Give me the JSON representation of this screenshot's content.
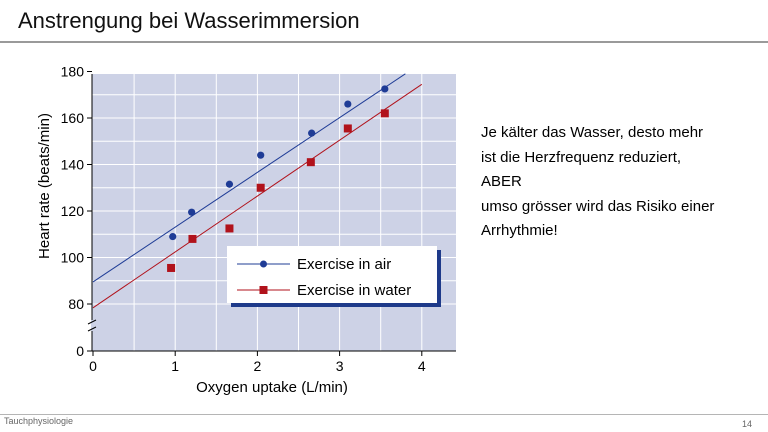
{
  "slide": {
    "title": "Anstrengung bei Wasserimmersion",
    "footer_left": "Tauchphysiologie",
    "page_number": "14"
  },
  "text_block": {
    "lines": [
      "Je kälter das Wasser, desto mehr",
      "ist die Herzfrequenz reduziert,",
      "ABER",
      "umso grösser wird das Risiko einer",
      "Arrhythmie!"
    ]
  },
  "colors": {
    "plot_background": "#cdd2e6",
    "grid": "#ffffff",
    "air": "#1f3c96",
    "water": "#b1121b",
    "legend_shadow": "#1e3a8a"
  },
  "chart_data": {
    "type": "scatter",
    "xlabel": "Oxygen uptake (L/min)",
    "ylabel": "Heart rate (beats/min)",
    "xlim": [
      0,
      4.4
    ],
    "ylim": [
      0,
      180
    ],
    "x_ticks": [
      0,
      1,
      2,
      3,
      4
    ],
    "y_ticks": [
      0,
      80,
      100,
      120,
      140,
      160,
      180
    ],
    "y_axis_break": [
      0,
      70
    ],
    "grid": true,
    "legend_position": "lower-right",
    "series": [
      {
        "name": "Exercise in air",
        "marker": "circle",
        "points": [
          [
            0.97,
            109
          ],
          [
            1.2,
            119.5
          ],
          [
            1.66,
            131.5
          ],
          [
            2.04,
            144
          ],
          [
            2.66,
            153.5
          ],
          [
            3.1,
            166
          ],
          [
            3.55,
            172.5
          ]
        ],
        "fit_line": [
          [
            0,
            89.5
          ],
          [
            3.8,
            179
          ]
        ]
      },
      {
        "name": "Exercise in water",
        "marker": "square",
        "points": [
          [
            0.95,
            95.5
          ],
          [
            1.21,
            108
          ],
          [
            1.66,
            112.5
          ],
          [
            2.04,
            130
          ],
          [
            2.65,
            141
          ],
          [
            3.1,
            155.5
          ],
          [
            3.55,
            162
          ]
        ],
        "fit_line": [
          [
            0,
            73.5
          ],
          [
            4.0,
            174.5
          ]
        ]
      }
    ]
  }
}
